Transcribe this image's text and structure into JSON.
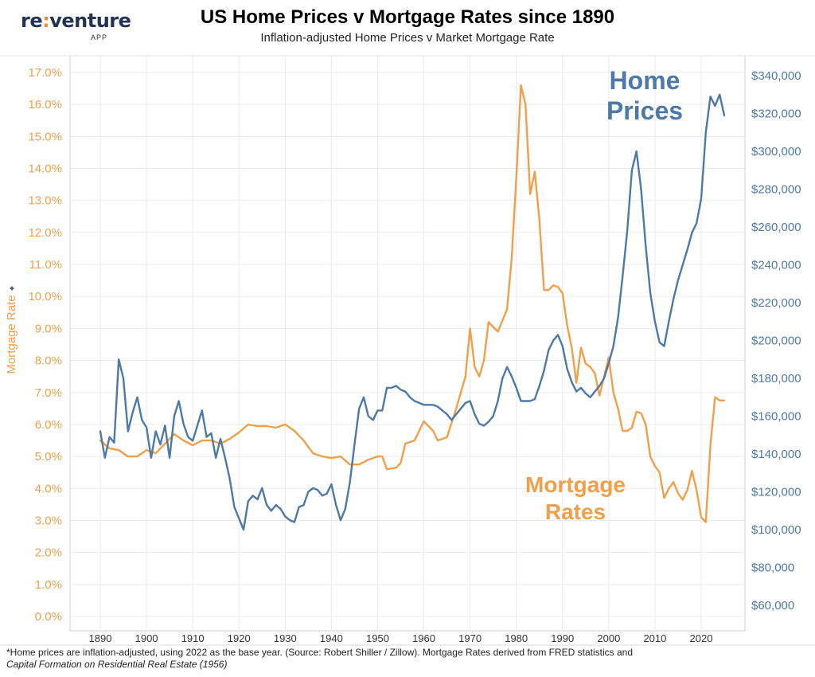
{
  "logo": {
    "brand_prefix": "re",
    "brand_colon": ":",
    "brand_suffix": "venture",
    "sub": "APP"
  },
  "header": {
    "title": "US Home Prices v Mortgage Rates since 1890",
    "subtitle": "Inflation-adjusted Home Prices v Market Mortgage Rate"
  },
  "footnote": {
    "line1": "*Home prices are inflation-adjusted, using 2022 as the base year. (Source: Robert Shiller / Zillow). Mortgage Rates derived from FRED statistics and",
    "line2": "Capital Formation on Residential Real Estate (1956)"
  },
  "colors": {
    "mortgage": "#f0a04b",
    "home": "#4e79a7",
    "grid": "#ebebeb",
    "logo": "#24334f"
  },
  "chart_data": {
    "type": "line",
    "x_ticks": [
      1890,
      1900,
      1910,
      1920,
      1930,
      1940,
      1950,
      1960,
      1970,
      1980,
      1990,
      2000,
      2010,
      2020
    ],
    "xlim": [
      1885,
      2028
    ],
    "y_left": {
      "label": "Mortgage Rate",
      "label_marker": "✦",
      "ticks": [
        "0.0%",
        "1.0%",
        "2.0%",
        "3.0%",
        "4.0%",
        "5.0%",
        "6.0%",
        "7.0%",
        "8.0%",
        "9.0%",
        "10.0%",
        "11.0%",
        "12.0%",
        "13.0%",
        "14.0%",
        "15.0%",
        "16.0%",
        "17.0%"
      ],
      "range": [
        0,
        17
      ]
    },
    "y_right": {
      "ticks": [
        "$60,000",
        "$80,000",
        "$100,000",
        "$120,000",
        "$140,000",
        "$160,000",
        "$180,000",
        "$200,000",
        "$220,000",
        "$240,000",
        "$260,000",
        "$280,000",
        "$300,000",
        "$320,000",
        "$340,000"
      ],
      "range": [
        55000,
        340000
      ]
    },
    "annotations": [
      {
        "series": "home",
        "lines": [
          "Home",
          "Prices"
        ]
      },
      {
        "series": "mortgage",
        "lines": [
          "Mortgage",
          "Rates"
        ]
      }
    ],
    "series": [
      {
        "id": "mortgage",
        "axis": "left",
        "x": [
          1890,
          1892,
          1894,
          1896,
          1898,
          1900,
          1902,
          1904,
          1906,
          1908,
          1910,
          1912,
          1914,
          1916,
          1918,
          1920,
          1922,
          1924,
          1926,
          1928,
          1930,
          1932,
          1934,
          1936,
          1938,
          1940,
          1942,
          1944,
          1946,
          1948,
          1950,
          1951,
          1952,
          1954,
          1955,
          1956,
          1958,
          1960,
          1962,
          1963,
          1965,
          1967,
          1969,
          1970,
          1971,
          1972,
          1973,
          1974,
          1976,
          1978,
          1979,
          1980,
          1981,
          1982,
          1983,
          1984,
          1985,
          1986,
          1987,
          1988,
          1989,
          1990,
          1991,
          1992,
          1993,
          1994,
          1995,
          1996,
          1997,
          1998,
          1999,
          2000,
          2001,
          2002,
          2003,
          2004,
          2005,
          2006,
          2007,
          2008,
          2009,
          2010,
          2011,
          2012,
          2013,
          2014,
          2015,
          2016,
          2017,
          2018,
          2019,
          2020,
          2021,
          2022,
          2023,
          2024,
          2025
        ],
        "values": [
          5.5,
          5.25,
          5.2,
          5.0,
          5.0,
          5.2,
          5.1,
          5.4,
          5.7,
          5.5,
          5.35,
          5.5,
          5.5,
          5.4,
          5.55,
          5.75,
          6.0,
          5.95,
          5.95,
          5.9,
          6.0,
          5.8,
          5.5,
          5.1,
          5.0,
          4.95,
          5.0,
          4.75,
          4.75,
          4.9,
          5.0,
          5.0,
          4.6,
          4.65,
          4.8,
          5.4,
          5.5,
          6.1,
          5.8,
          5.5,
          5.6,
          6.5,
          7.5,
          9.0,
          7.8,
          7.5,
          8.0,
          9.2,
          8.9,
          9.6,
          11.2,
          13.7,
          16.6,
          16.0,
          13.2,
          13.9,
          12.4,
          10.2,
          10.2,
          10.35,
          10.3,
          10.1,
          9.1,
          8.4,
          7.3,
          8.4,
          7.9,
          7.8,
          7.6,
          6.9,
          7.5,
          8.1,
          7.0,
          6.5,
          5.8,
          5.8,
          5.9,
          6.4,
          6.35,
          6.0,
          5.0,
          4.7,
          4.5,
          3.7,
          4.0,
          4.2,
          3.85,
          3.65,
          3.95,
          4.55,
          3.95,
          3.1,
          2.95,
          5.35,
          6.85,
          6.75,
          6.75
        ]
      },
      {
        "id": "home",
        "axis": "right",
        "x": [
          1890,
          1891,
          1892,
          1893,
          1894,
          1895,
          1896,
          1897,
          1898,
          1899,
          1900,
          1901,
          1902,
          1903,
          1904,
          1905,
          1906,
          1907,
          1908,
          1909,
          1910,
          1911,
          1912,
          1913,
          1914,
          1915,
          1916,
          1917,
          1918,
          1919,
          1920,
          1921,
          1922,
          1923,
          1924,
          1925,
          1926,
          1927,
          1928,
          1929,
          1930,
          1931,
          1932,
          1933,
          1934,
          1935,
          1936,
          1937,
          1938,
          1939,
          1940,
          1941,
          1942,
          1943,
          1944,
          1945,
          1946,
          1947,
          1948,
          1949,
          1950,
          1951,
          1952,
          1953,
          1954,
          1955,
          1956,
          1957,
          1958,
          1959,
          1960,
          1961,
          1962,
          1963,
          1964,
          1965,
          1966,
          1967,
          1968,
          1969,
          1970,
          1971,
          1972,
          1973,
          1974,
          1975,
          1976,
          1977,
          1978,
          1979,
          1980,
          1981,
          1982,
          1983,
          1984,
          1985,
          1986,
          1987,
          1988,
          1989,
          1990,
          1991,
          1992,
          1993,
          1994,
          1995,
          1996,
          1997,
          1998,
          1999,
          2000,
          2001,
          2002,
          2003,
          2004,
          2005,
          2006,
          2007,
          2008,
          2009,
          2010,
          2011,
          2012,
          2013,
          2014,
          2015,
          2016,
          2017,
          2018,
          2019,
          2020,
          2021,
          2022,
          2023,
          2024,
          2025
        ],
        "values": [
          152000,
          138000,
          149000,
          146000,
          190000,
          180000,
          152000,
          162000,
          170000,
          158000,
          154000,
          138000,
          152000,
          145000,
          155000,
          138000,
          160000,
          168000,
          156000,
          149000,
          147000,
          155000,
          163000,
          149000,
          151000,
          138000,
          148000,
          138000,
          127000,
          112000,
          106000,
          100000,
          115000,
          118000,
          116000,
          122000,
          113000,
          110000,
          113000,
          111000,
          107000,
          105000,
          104000,
          112000,
          113000,
          120000,
          122000,
          121000,
          118000,
          119000,
          124000,
          113000,
          105000,
          111000,
          125000,
          145000,
          164000,
          170000,
          160000,
          158000,
          163000,
          163000,
          175000,
          175000,
          176000,
          174000,
          173000,
          170000,
          168000,
          167000,
          166000,
          166000,
          166000,
          165000,
          163000,
          161000,
          158000,
          161000,
          164000,
          167000,
          168000,
          161000,
          156000,
          155000,
          157000,
          160000,
          168000,
          180000,
          186000,
          181000,
          175000,
          168000,
          168000,
          168000,
          169000,
          176000,
          184000,
          195000,
          200000,
          203000,
          197000,
          185000,
          178000,
          173000,
          175000,
          172000,
          170000,
          173000,
          176000,
          180000,
          188000,
          197000,
          212000,
          234000,
          258000,
          290000,
          300000,
          280000,
          250000,
          225000,
          210000,
          199000,
          197000,
          210000,
          222000,
          232000,
          240000,
          248000,
          257000,
          262000,
          275000,
          310000,
          329000,
          324000,
          330000,
          319000
        ]
      }
    ]
  }
}
